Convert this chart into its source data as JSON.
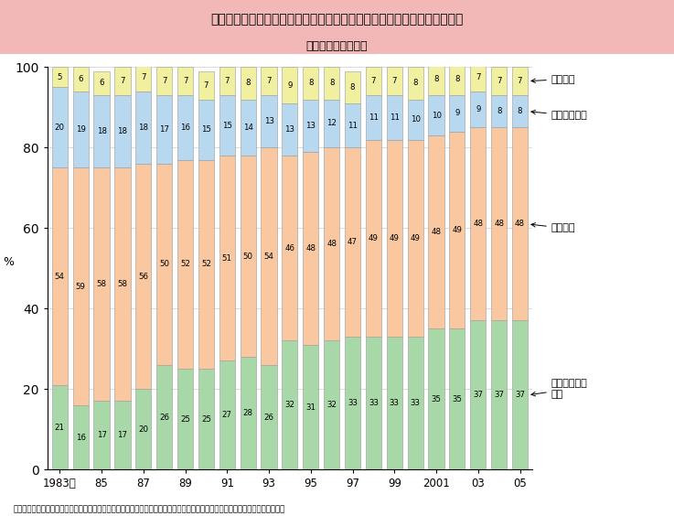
{
  "title": "図３－７　米の消費量に占める家計消費、外食・中食等消費の割合の推移",
  "subtitle": "（１人１年当たり）",
  "x_labels_shown": [
    "1983年",
    "85",
    "87",
    "89",
    "91",
    "93",
    "95",
    "97",
    "99",
    "2001",
    "03",
    "05"
  ],
  "x_positions_shown": [
    0,
    2,
    4,
    6,
    8,
    10,
    12,
    14,
    16,
    18,
    20,
    22
  ],
  "n_bars": 23,
  "gaishoku": [
    21,
    16,
    17,
    17,
    20,
    26,
    25,
    25,
    27,
    28,
    26,
    32,
    31,
    32,
    33,
    33,
    33,
    33,
    35,
    35,
    37,
    37,
    37
  ],
  "kakei": [
    54,
    59,
    58,
    58,
    56,
    50,
    52,
    52,
    51,
    50,
    54,
    46,
    48,
    48,
    47,
    49,
    49,
    49,
    48,
    49,
    48,
    48,
    48
  ],
  "nouka": [
    20,
    19,
    18,
    18,
    18,
    17,
    16,
    15,
    15,
    14,
    13,
    13,
    13,
    12,
    11,
    11,
    11,
    10,
    10,
    9,
    9,
    8,
    8
  ],
  "musho": [
    5,
    6,
    6,
    7,
    7,
    7,
    7,
    7,
    7,
    8,
    7,
    9,
    8,
    8,
    8,
    7,
    7,
    8,
    8,
    8,
    7,
    7,
    7
  ],
  "color_gaishoku": "#a8d8a8",
  "color_kakei": "#f9c8a0",
  "color_nouka": "#b8d8f0",
  "color_musho": "#f0f0a0",
  "ylabel": "%",
  "ylim": [
    0,
    100
  ],
  "source": "資料：農林水産省「食料需給表」、「生産者の米穀現在高等調査」、総務省「家計調査」、「国勢調査」を基に農林水産省で推計",
  "legend_gaishoku": "外食・中食等\n消費",
  "legend_kakei": "家計消費",
  "legend_nouka": "農家自家消費",
  "legend_musho": "無償譲渡",
  "title_bg": "#f2b8b8",
  "bar_width": 0.75
}
